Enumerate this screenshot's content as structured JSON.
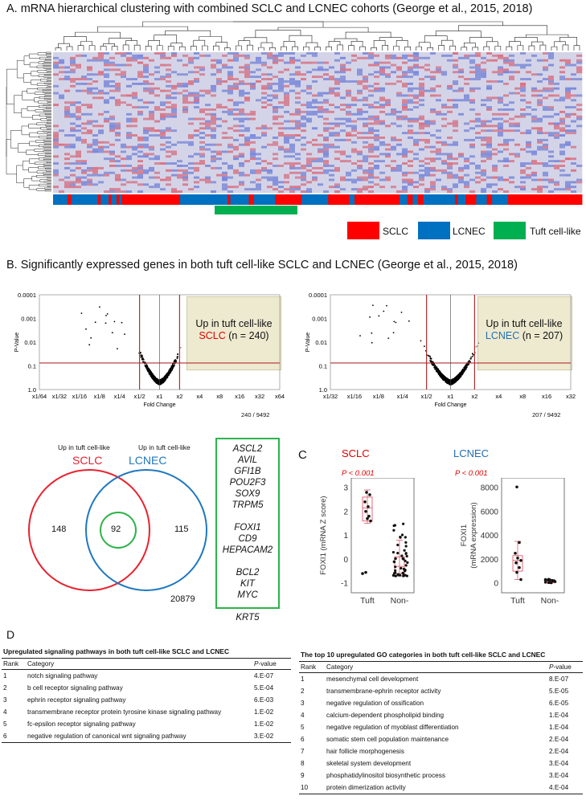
{
  "panel_a": {
    "title": "A. mRNA hierarchical clustering with combined SCLC and LCNEC cohorts (George et al., 2015, 2018)",
    "legend": [
      {
        "label": "SCLC",
        "color": "#ff0000"
      },
      {
        "label": "LCNEC",
        "color": "#0070c0"
      },
      {
        "label": "Tuft cell-like",
        "color": "#00b050"
      }
    ]
  },
  "panel_b": {
    "title": "B. Significantly expressed genes in both tuft cell-like SCLC and LCNEC (George et al., 2015, 2018)",
    "volcano_sclc": {
      "ylabel": "P-Value",
      "xlabel": "Fold Change",
      "y_ticks": [
        "0.0001",
        "0.001",
        "0.01",
        "0.1",
        "1.0"
      ],
      "x_ticks": [
        "x1/64",
        "x1/32",
        "x1/16",
        "x1/8",
        "x1/4",
        "x1/2",
        "x1",
        "x2",
        "x4",
        "x8",
        "x16",
        "x32",
        "x64"
      ],
      "annot_line1": "Up in tuft cell-like",
      "annot_group": "SCLC",
      "annot_count": "(n = 240)",
      "group_color": "#e00000",
      "count_label": "240 / 9492"
    },
    "volcano_lcnec": {
      "ylabel": "P-Value",
      "xlabel": "Fold Change",
      "y_ticks": [
        "0.0001",
        "0.001",
        "0.01",
        "0.1",
        "1.0"
      ],
      "x_ticks": [
        "x1/32",
        "x1/16",
        "x1/8",
        "x1/4",
        "x1/2",
        "x1",
        "x2",
        "x4",
        "x8",
        "x16",
        "x32"
      ],
      "annot_line1": "Up in tuft cell-like",
      "annot_group": "LCNEC",
      "annot_count": "(n = 207)",
      "group_color": "#1f6fb5",
      "count_label": "207 / 9492"
    },
    "venn": {
      "left_header": "Up in tuft cell-like",
      "right_header": "Up in tuft cell-like",
      "left_name": "SCLC",
      "right_name": "LCNEC",
      "left_only": "148",
      "overlap": "92",
      "right_only": "115",
      "outside": "20879",
      "left_color": "#e8212e",
      "right_color": "#1f77c0",
      "inner_color": "#2db34a"
    },
    "gene_groups": [
      [
        "ASCL2",
        "AVIL",
        "GFI1B",
        "POU2F3",
        "SOX9",
        "TRPM5"
      ],
      [
        "FOXI1",
        "CD9",
        "HEPACAM2"
      ],
      [
        "BCL2",
        "KIT",
        "MYC"
      ],
      [
        "KRT5"
      ]
    ]
  },
  "panel_c": {
    "label": "C",
    "sclc": {
      "title": "SCLC",
      "title_color": "#e00000",
      "pvalue": "P < 0.001",
      "ylabel": "FOXI1 (mRNA Z score)",
      "y_ticks": [
        "3",
        "2",
        "1",
        "0",
        "-1"
      ],
      "categories": [
        "Tuft",
        "Non-"
      ]
    },
    "lcnec": {
      "title": "LCNEC",
      "title_color": "#1f6fb5",
      "pvalue": "P < 0.001",
      "ylabel_line1": "FOXI1",
      "ylabel_line2": "(mRNA expression)",
      "y_ticks": [
        "8000",
        "6000",
        "4000",
        "2000",
        "0"
      ],
      "categories": [
        "Tuft",
        "Non-"
      ]
    }
  },
  "panel_d": {
    "label": "D",
    "pathways": {
      "title": "Upregulated signaling pathways in both tuft cell-like SCLC and LCNEC",
      "headers": {
        "rank": "Rank",
        "category": "Category",
        "pvalue": "P-value"
      },
      "rows": [
        {
          "rank": "1",
          "category": "notch signaling pathway",
          "pvalue": "4.E-07"
        },
        {
          "rank": "2",
          "category": "b cell receptor signaling pathway",
          "pvalue": "5.E-04"
        },
        {
          "rank": "3",
          "category": "ephrin receptor signaling pathway",
          "pvalue": "6.E-03"
        },
        {
          "rank": "4",
          "category": "transmembrane receptor protein tyrosine kinase signaling pathway",
          "pvalue": "1.E-02"
        },
        {
          "rank": "5",
          "category": "fc-epsilon receptor signaling pathway",
          "pvalue": "1.E-02"
        },
        {
          "rank": "6",
          "category": "negative regulation of canonical wnt signaling pathway",
          "pvalue": "3.E-02"
        }
      ]
    },
    "go": {
      "title": "The top 10 upregulated GO categories in both tuft cell-like SCLC and LCNEC",
      "headers": {
        "rank": "Rank",
        "category": "Category",
        "pvalue": "P-value"
      },
      "rows": [
        {
          "rank": "1",
          "category": "mesenchymal cell development",
          "pvalue": "8.E-07"
        },
        {
          "rank": "2",
          "category": "transmembrane-ephrin receptor activity",
          "pvalue": "5.E-05"
        },
        {
          "rank": "3",
          "category": "negative regulation of ossification",
          "pvalue": "6.E-05"
        },
        {
          "rank": "4",
          "category": "calcium-dependent phospholipid binding",
          "pvalue": "1.E-04"
        },
        {
          "rank": "5",
          "category": "negative regulation of myoblast differentiation",
          "pvalue": "1.E-04"
        },
        {
          "rank": "6",
          "category": "somatic stem cell population maintenance",
          "pvalue": "2.E-04"
        },
        {
          "rank": "7",
          "category": "hair follicle morphogenesis",
          "pvalue": "2.E-04"
        },
        {
          "rank": "8",
          "category": "skeletal system development",
          "pvalue": "3.E-04"
        },
        {
          "rank": "9",
          "category": "phosphatidylinositol biosynthetic process",
          "pvalue": "3.E-04"
        },
        {
          "rank": "10",
          "category": "protein dimerization activity",
          "pvalue": "4.E-04"
        }
      ]
    }
  }
}
